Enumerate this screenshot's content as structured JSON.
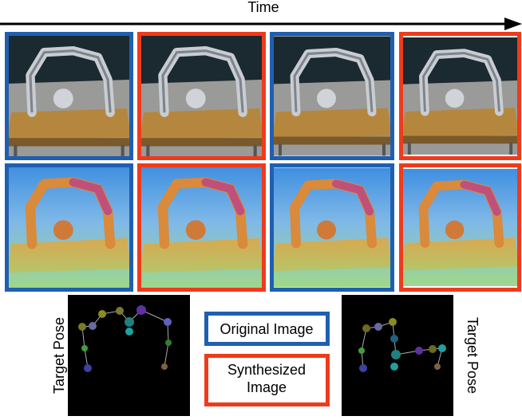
{
  "header": {
    "title": "Time"
  },
  "legend": {
    "original": "Original Image",
    "synthesized": "Synthesized Image"
  },
  "pose_labels": {
    "left": "Target Pose",
    "right": "Target Pose"
  }
}
